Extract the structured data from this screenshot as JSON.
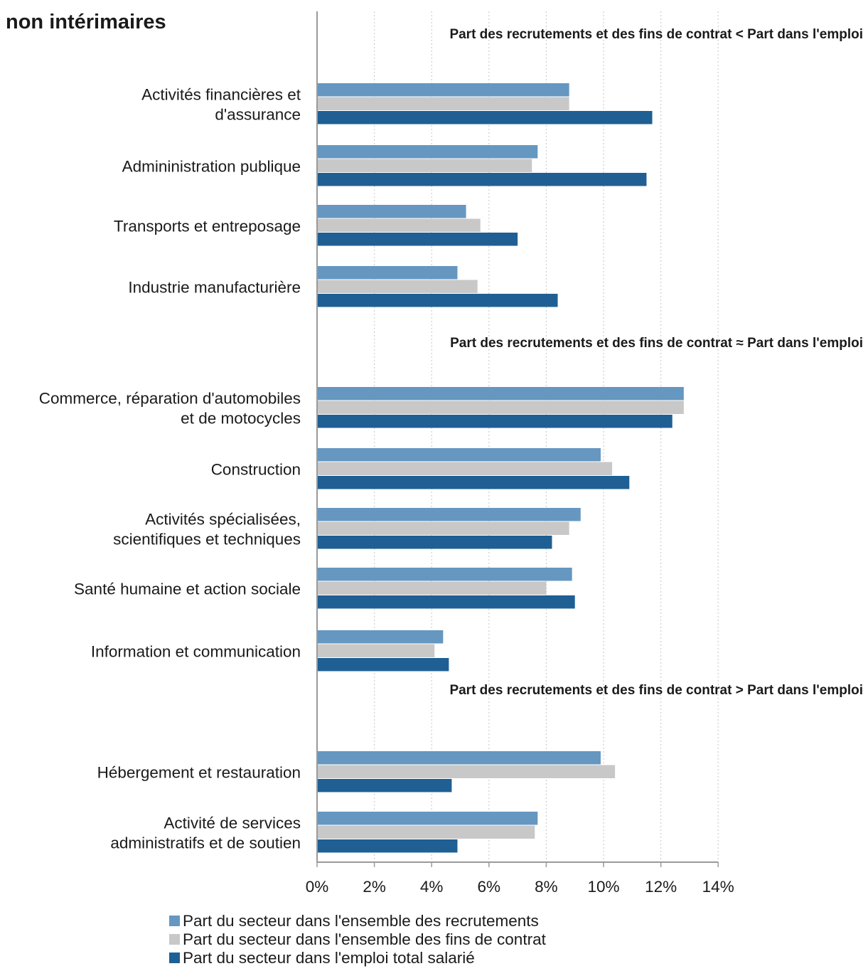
{
  "chart_data": {
    "type": "bar",
    "orientation": "horizontal",
    "title": "non intérimaires",
    "categories": [
      [
        "Activités financières et",
        "d'assurance"
      ],
      [
        "Admininistration publique"
      ],
      [
        "Transports et entreposage"
      ],
      [
        "Industrie manufacturière"
      ],
      [
        "Commerce, réparation d'automobiles",
        "et de motocycles"
      ],
      [
        "Construction"
      ],
      [
        "Activités spécialisées,",
        "scientifiques et techniques"
      ],
      [
        "Santé humaine et action sociale"
      ],
      [
        "Information et communication"
      ],
      [
        "Hébergement et restauration"
      ],
      [
        "Activité de services",
        "administratifs et de soutien"
      ]
    ],
    "groups": [
      {
        "title": "Part des recrutements et des fins de contrat  <  Part dans l'emploi",
        "category_indices": [
          0,
          1,
          2,
          3
        ]
      },
      {
        "title": "Part des recrutements et des fins de contrat  ≈ Part dans l'emploi",
        "category_indices": [
          4,
          5,
          6,
          7,
          8
        ]
      },
      {
        "title": "Part des recrutements et des fins de contrat  >  Part dans l'emploi",
        "category_indices": [
          9,
          10
        ]
      }
    ],
    "series": [
      {
        "name": "Part du secteur dans l'ensemble des recrutements",
        "color": "#6597c0",
        "values": [
          8.8,
          7.7,
          5.2,
          4.9,
          12.8,
          9.9,
          9.2,
          8.9,
          4.4,
          9.9,
          7.7
        ]
      },
      {
        "name": "Part du secteur dans l'ensemble des fins de contrat",
        "color": "#c8c8c8",
        "values": [
          8.8,
          7.5,
          5.7,
          5.6,
          12.8,
          10.3,
          8.8,
          8.0,
          4.1,
          10.4,
          7.6
        ]
      },
      {
        "name": "Part du secteur dans l'emploi total salarié",
        "color": "#1f5f93",
        "values": [
          11.7,
          11.5,
          7.0,
          8.4,
          12.4,
          10.9,
          8.2,
          9.0,
          4.6,
          4.7,
          4.9
        ]
      }
    ],
    "xlim": [
      0,
      14
    ],
    "x_ticks": [
      0,
      2,
      4,
      6,
      8,
      10,
      12,
      14
    ],
    "x_tick_labels": [
      "0%",
      "2%",
      "4%",
      "6%",
      "8%",
      "10%",
      "12%",
      "14%"
    ],
    "xlabel": "",
    "ylabel": "",
    "grid": "vertical dotted",
    "legend_position": "bottom"
  }
}
